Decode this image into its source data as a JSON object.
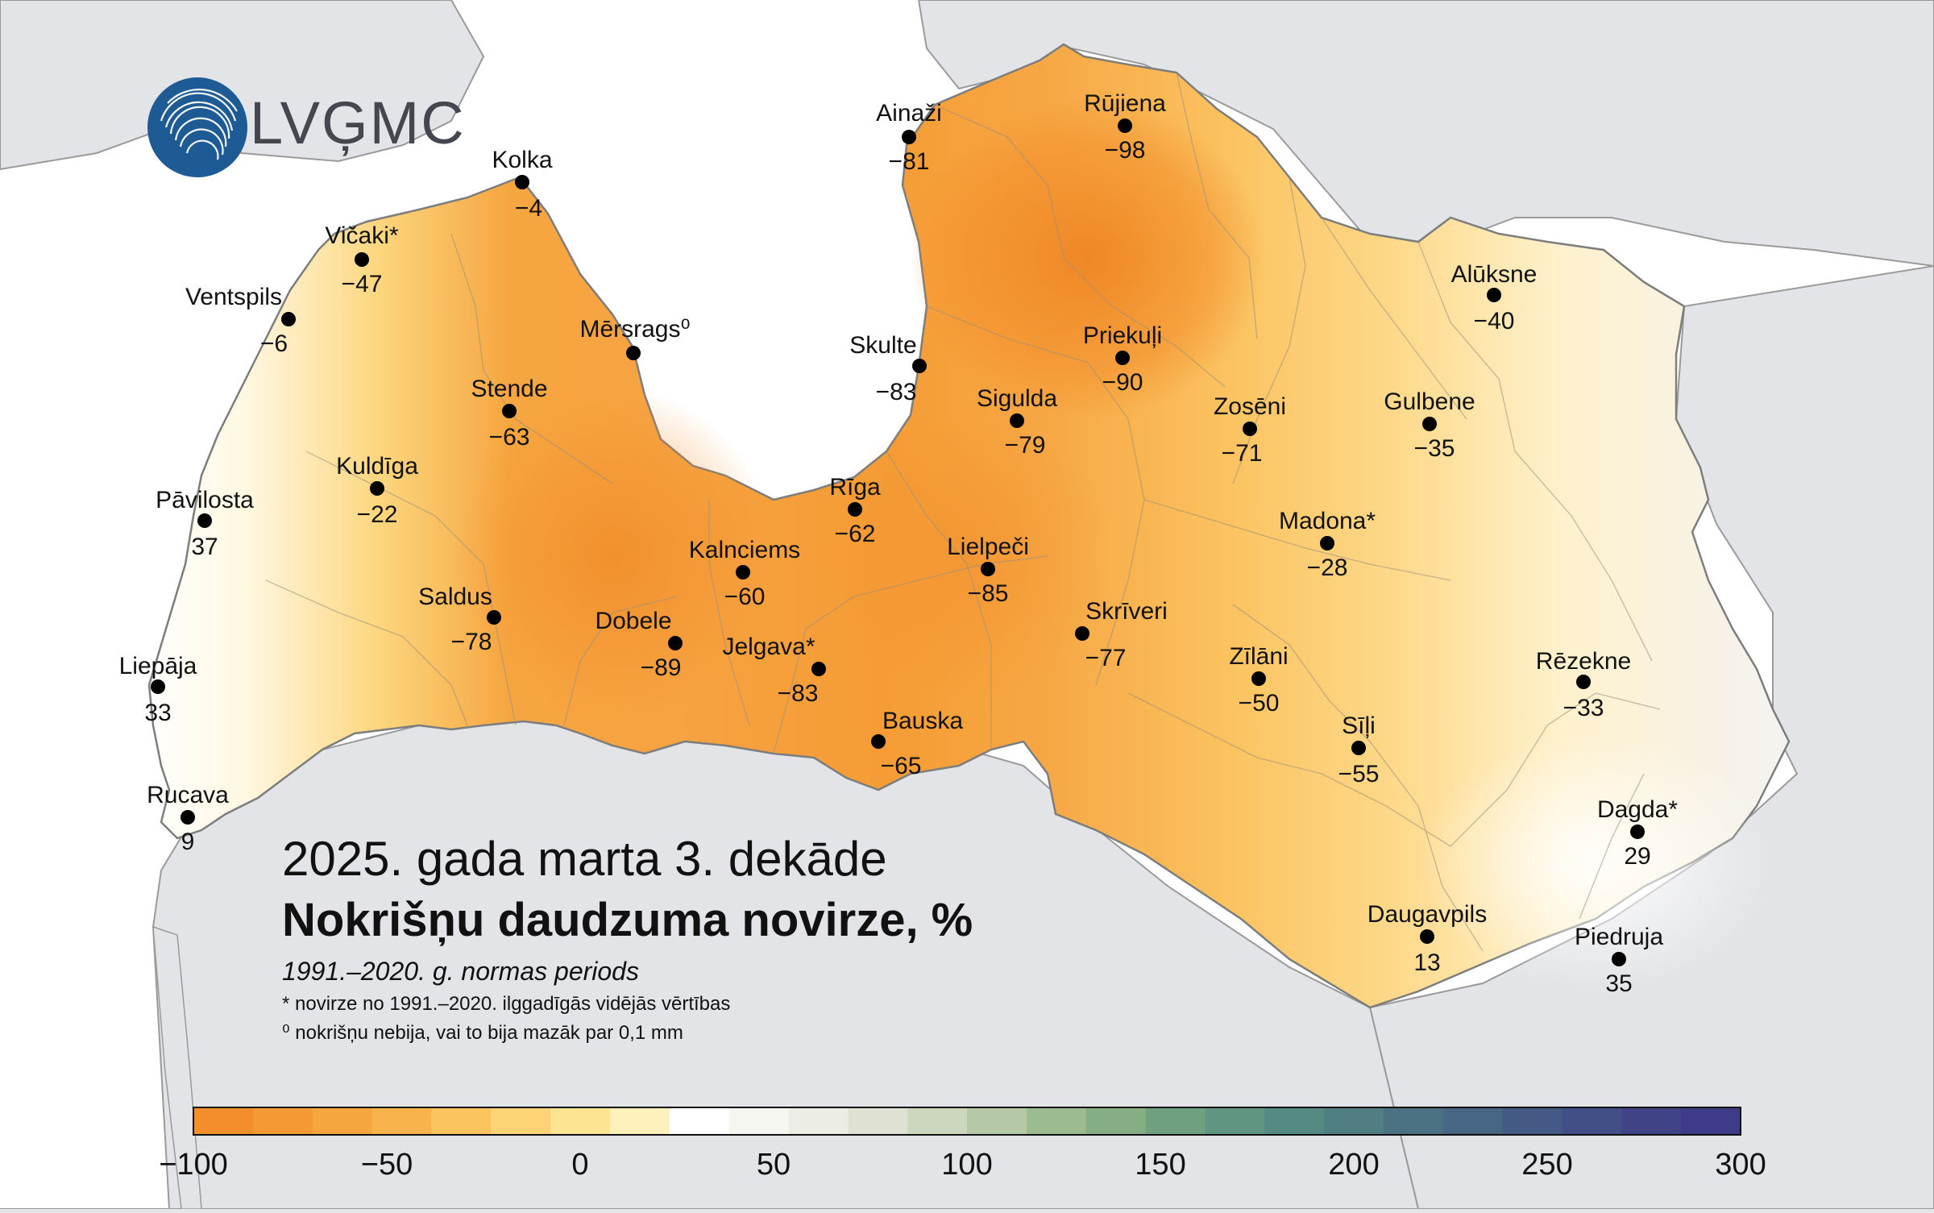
{
  "logo": {
    "text": "LVĢMC",
    "icon": "lvgmc-rings-logo-icon"
  },
  "title": {
    "period": "2025. gada marta 3. dekāde",
    "main": "Nokrišņu daudzuma novirze, %",
    "subtitle": "1991.–2020. g. normas periods",
    "notes": [
      "* novirze no 1991.–2020. ilggadīgās vidējās vērtības",
      "⁰ nokrišņu nebija, vai to bija mazāk par 0,1 mm"
    ]
  },
  "colors": {
    "sea": "#ffffff",
    "land_outside": "#dcdcdd",
    "border": "#8a8a8a",
    "station_dot": "#000000",
    "low_deviation": "#f28e2b",
    "zero_deviation": "#ffffff",
    "high_deviation": "#3a3f8a"
  },
  "stations": [
    {
      "id": "kolka",
      "name": "Kolka",
      "value": "−4"
    },
    {
      "id": "vicaki",
      "name": "Vičaki*",
      "value": "−47"
    },
    {
      "id": "ventspils",
      "name": "Ventspils",
      "value": "−6"
    },
    {
      "id": "mersrags",
      "name": "Mērsrags⁰",
      "value": ""
    },
    {
      "id": "stende",
      "name": "Stende",
      "value": "−63"
    },
    {
      "id": "kuldiga",
      "name": "Kuldīga",
      "value": "−22"
    },
    {
      "id": "pavilosta",
      "name": "Pāvilosta",
      "value": "37"
    },
    {
      "id": "saldus",
      "name": "Saldus",
      "value": "−78"
    },
    {
      "id": "dobele",
      "name": "Dobele",
      "value": "−89"
    },
    {
      "id": "liepaja",
      "name": "Liepāja",
      "value": "33"
    },
    {
      "id": "rucava",
      "name": "Rucava",
      "value": "9"
    },
    {
      "id": "ainazi",
      "name": "Ainaži",
      "value": "−81"
    },
    {
      "id": "rujiena",
      "name": "Rūjiena",
      "value": "−98"
    },
    {
      "id": "skulte",
      "name": "Skulte",
      "value": "−83"
    },
    {
      "id": "priekuli",
      "name": "Priekuļi",
      "value": "−90"
    },
    {
      "id": "sigulda",
      "name": "Sigulda",
      "value": "−79"
    },
    {
      "id": "riga",
      "name": "Rīga",
      "value": "−62"
    },
    {
      "id": "kalnciems",
      "name": "Kalnciems",
      "value": "−60"
    },
    {
      "id": "jelgava",
      "name": "Jelgava*",
      "value": "−83"
    },
    {
      "id": "lielpeci",
      "name": "Lielpeči",
      "value": "−85"
    },
    {
      "id": "bauska",
      "name": "Bauska",
      "value": "−65"
    },
    {
      "id": "skriveri",
      "name": "Skrīveri",
      "value": "−77"
    },
    {
      "id": "zoseni",
      "name": "Zosēni",
      "value": "−71"
    },
    {
      "id": "aluksne",
      "name": "Alūksne",
      "value": "−40"
    },
    {
      "id": "gulbene",
      "name": "Gulbene",
      "value": "−35"
    },
    {
      "id": "madona",
      "name": "Madona*",
      "value": "−28"
    },
    {
      "id": "zilani",
      "name": "Zīlāni",
      "value": "−50"
    },
    {
      "id": "sili",
      "name": "Sīļi",
      "value": "−55"
    },
    {
      "id": "rezekne",
      "name": "Rēzekne",
      "value": "−33"
    },
    {
      "id": "dagda",
      "name": "Dagda*",
      "value": "29"
    },
    {
      "id": "daugavpils",
      "name": "Daugavpils",
      "value": "13"
    },
    {
      "id": "piedruja",
      "name": "Piedruja",
      "value": "35"
    }
  ],
  "legend": {
    "min": -100,
    "max": 300,
    "ticks": [
      "−100",
      "−50",
      "0",
      "50",
      "100",
      "150",
      "200",
      "250",
      "300"
    ],
    "colors": [
      "#f28e2b",
      "#f49a34",
      "#f6a63e",
      "#f8b44c",
      "#fbc35e",
      "#fcd477",
      "#fde493",
      "#fef1bb",
      "#ffffff",
      "#f6f6f0",
      "#ecede4",
      "#dfe2d2",
      "#cdd7bd",
      "#b6c9a6",
      "#9cbb8f",
      "#85ae84",
      "#6fa180",
      "#5f9581",
      "#558a82",
      "#4f7e83",
      "#4a7283",
      "#476683",
      "#445a85",
      "#424e86",
      "#404388",
      "#3e3b89"
    ]
  }
}
